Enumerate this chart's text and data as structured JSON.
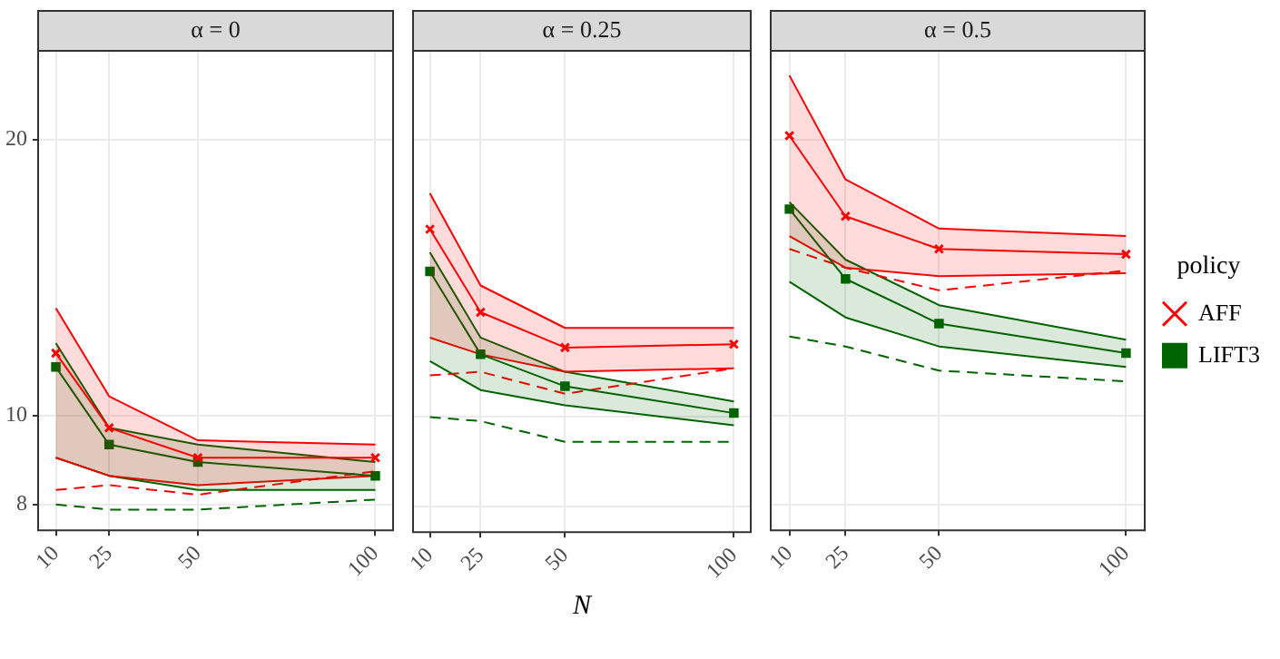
{
  "chart_data": [
    {
      "type": "line",
      "title": "α = 0",
      "x": [
        10,
        25,
        50,
        100
      ],
      "xlim": [
        5,
        105
      ],
      "xticks": [
        10,
        25,
        50,
        100
      ],
      "ylim": [
        7.5,
        25
      ],
      "yticks": [
        8,
        10,
        20
      ],
      "log": "y",
      "grid": true,
      "series": [
        {
          "color": "#ff0000",
          "marker": "cross",
          "values": [
            11.7,
            9.7,
            9.0,
            9.0
          ],
          "lower": [
            9.0,
            8.6,
            8.4,
            8.6
          ],
          "upper": [
            13.1,
            10.5,
            9.4,
            9.3
          ]
        },
        {
          "color": "#006400",
          "marker": "square",
          "values": [
            11.3,
            9.3,
            8.9,
            8.6
          ],
          "lower": [
            9.0,
            8.6,
            8.3,
            8.3
          ],
          "upper": [
            12.0,
            9.7,
            9.3,
            8.9
          ]
        },
        {
          "color": "#ff0000",
          "marker": "none",
          "line_style": "dashed",
          "values": [
            8.3,
            8.4,
            8.2,
            8.7
          ]
        },
        {
          "color": "#006400",
          "marker": "none",
          "line_style": "dashed",
          "values": [
            8.0,
            7.9,
            7.9,
            8.1
          ]
        },
        {
          "color": "#ff0000",
          "marker": "none",
          "values": [
            9.0,
            8.6,
            8.4,
            8.6
          ]
        },
        {
          "color": "#ff0000",
          "marker": "none",
          "values": [
            13.1,
            10.5,
            9.4,
            9.3
          ]
        },
        {
          "color": "#006400",
          "marker": "none",
          "values": [
            9.0,
            8.6,
            8.3,
            8.3
          ]
        },
        {
          "color": "#006400",
          "marker": "none",
          "values": [
            12.0,
            9.7,
            9.3,
            8.9
          ]
        }
      ]
    },
    {
      "type": "line",
      "title": "α = 0.25",
      "xlabel": "N",
      "x": [
        10,
        25,
        50,
        100
      ],
      "xlim": [
        5,
        105
      ],
      "xticks": [
        10,
        25,
        50,
        100
      ],
      "ylim": [
        7.5,
        25
      ],
      "yticks": [
        8,
        10,
        20
      ],
      "log": "y",
      "grid": true,
      "tick_labels": "x",
      "series": [
        {
          "color": "#ff0000",
          "marker": "cross",
          "values": [
            16.0,
            13.0,
            11.9,
            12.0
          ],
          "lower": [
            12.2,
            11.7,
            11.2,
            11.3
          ],
          "upper": [
            17.5,
            13.9,
            12.5,
            12.5
          ]
        },
        {
          "color": "#006400",
          "marker": "square",
          "values": [
            14.4,
            11.7,
            10.8,
            10.1
          ],
          "lower": [
            11.5,
            10.7,
            10.3,
            9.8
          ],
          "upper": [
            15.1,
            12.2,
            11.2,
            10.4
          ]
        },
        {
          "color": "#ff0000",
          "marker": "none",
          "line_style": "dashed",
          "values": [
            11.1,
            11.2,
            10.6,
            11.3
          ]
        },
        {
          "color": "#006400",
          "marker": "none",
          "line_style": "dashed",
          "values": [
            10.0,
            9.9,
            9.4,
            9.4
          ]
        },
        {
          "color": "#ff0000",
          "marker": "none",
          "values": [
            12.2,
            11.7,
            11.2,
            11.3
          ]
        },
        {
          "color": "#ff0000",
          "marker": "none",
          "values": [
            17.5,
            13.9,
            12.5,
            12.5
          ]
        },
        {
          "color": "#006400",
          "marker": "none",
          "values": [
            11.5,
            10.7,
            10.3,
            9.8
          ]
        },
        {
          "color": "#006400",
          "marker": "none",
          "values": [
            15.1,
            12.2,
            11.2,
            10.4
          ]
        }
      ]
    },
    {
      "type": "line",
      "title": "α = 0.5",
      "x": [
        10,
        25,
        50,
        100
      ],
      "xlim": [
        5,
        105
      ],
      "xticks": [
        10,
        25,
        50,
        100
      ],
      "ylim": [
        7.5,
        25
      ],
      "yticks": [
        8,
        10,
        20
      ],
      "log": "y",
      "grid": true,
      "tick_labels": "x",
      "legend": "right",
      "legend_title": "policy",
      "series": [
        {
          "name": "AFF",
          "color": "#ff0000",
          "marker": "cross",
          "values": [
            20.2,
            16.5,
            15.2,
            15.0
          ],
          "lower": [
            15.7,
            14.5,
            14.2,
            14.3
          ],
          "upper": [
            23.5,
            18.1,
            16.0,
            15.7
          ]
        },
        {
          "name": "LIFT3",
          "color": "#006400",
          "marker": "square",
          "values": [
            16.8,
            14.1,
            12.6,
            11.7
          ],
          "lower": [
            14.0,
            12.8,
            11.9,
            11.3
          ],
          "upper": [
            17.1,
            14.8,
            13.2,
            12.1
          ]
        },
        {
          "color": "#ff0000",
          "marker": "none",
          "line_style": "dashed",
          "values": [
            15.2,
            14.5,
            13.7,
            14.4
          ]
        },
        {
          "color": "#006400",
          "marker": "none",
          "line_style": "dashed",
          "values": [
            12.2,
            11.9,
            11.2,
            10.9
          ]
        },
        {
          "color": "#ff0000",
          "marker": "none",
          "values": [
            15.7,
            14.5,
            14.2,
            14.3
          ]
        },
        {
          "color": "#ff0000",
          "marker": "none",
          "values": [
            23.5,
            18.1,
            16.0,
            15.7
          ]
        },
        {
          "color": "#006400",
          "marker": "none",
          "values": [
            14.0,
            12.8,
            11.9,
            11.3
          ]
        },
        {
          "color": "#006400",
          "marker": "none",
          "values": [
            17.1,
            14.8,
            13.2,
            12.1
          ]
        }
      ]
    }
  ]
}
